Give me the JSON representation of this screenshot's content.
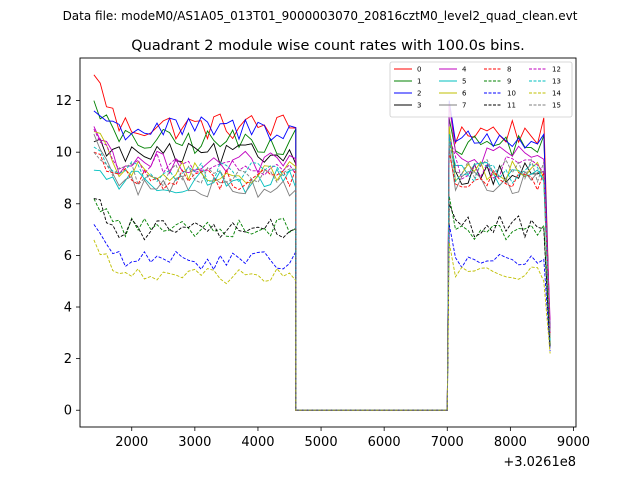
{
  "suptitle": "Data file: modeM0/AS1A05_013T01_9000003070_20816cztM0_level2_quad_clean.evt",
  "chart_data": {
    "type": "line",
    "title": "Quadrant 2 module wise count rates with 100.0s bins.",
    "xlabel": "",
    "ylabel": "",
    "x_offset_label": "+3.0261e8",
    "xlim": [
      1180,
      9040
    ],
    "ylim": [
      -0.65,
      13.65
    ],
    "x_ticks": [
      2000,
      3000,
      4000,
      5000,
      6000,
      7000,
      8000,
      9000
    ],
    "y_ticks": [
      0,
      2,
      4,
      6,
      8,
      10,
      12
    ],
    "grid": false,
    "legend_position": "top-right",
    "segments": [
      {
        "start": 1400,
        "step": 100,
        "count": 33
      },
      {
        "start": 7030,
        "step": 100,
        "count": 17
      }
    ],
    "gap": {
      "x": [
        4600,
        4680,
        7000
      ],
      "y": 0
    },
    "series": [
      {
        "name": "0",
        "color": "#ff0000",
        "dash": false,
        "level1": 11.0,
        "level2": 10.8,
        "start1": 13.0,
        "start2": 11.8,
        "end2": 3.0,
        "noise": 0.55
      },
      {
        "name": "1",
        "color": "#008000",
        "dash": false,
        "level1": 10.4,
        "level2": 10.3,
        "start1": 12.0,
        "start2": 11.3,
        "end2": 2.9,
        "noise": 0.5
      },
      {
        "name": "2",
        "color": "#0000ff",
        "dash": false,
        "level1": 10.9,
        "level2": 10.5,
        "start1": 11.6,
        "start2": 12.0,
        "end2": 3.0,
        "noise": 0.5
      },
      {
        "name": "3",
        "color": "#000000",
        "dash": false,
        "level1": 9.9,
        "level2": 9.2,
        "start1": 10.4,
        "start2": 10.9,
        "end2": 2.7,
        "noise": 0.45
      },
      {
        "name": "4",
        "color": "#bf00bf",
        "dash": false,
        "level1": 9.6,
        "level2": 9.8,
        "start1": 11.0,
        "start2": 11.9,
        "end2": 3.5,
        "noise": 0.45
      },
      {
        "name": "5",
        "color": "#00bfbf",
        "dash": false,
        "level1": 8.9,
        "level2": 9.1,
        "start1": 9.3,
        "start2": 10.5,
        "end2": 2.8,
        "noise": 0.5
      },
      {
        "name": "6",
        "color": "#bfbf00",
        "dash": false,
        "level1": 9.2,
        "level2": 9.3,
        "start1": 10.8,
        "start2": 11.0,
        "end2": 2.6,
        "noise": 0.45
      },
      {
        "name": "7",
        "color": "#7f7f7f",
        "dash": false,
        "level1": 8.7,
        "level2": 8.8,
        "start1": 10.7,
        "start2": 10.2,
        "end2": 2.5,
        "noise": 0.45
      },
      {
        "name": "8",
        "color": "#ff0000",
        "dash": true,
        "level1": 9.0,
        "level2": 8.9,
        "start1": 10.0,
        "start2": 10.0,
        "end2": 2.9,
        "noise": 0.45
      },
      {
        "name": "9",
        "color": "#008000",
        "dash": true,
        "level1": 7.1,
        "level2": 7.0,
        "start1": 8.2,
        "start2": 8.3,
        "end2": 2.5,
        "noise": 0.4
      },
      {
        "name": "10",
        "color": "#0000ff",
        "dash": true,
        "level1": 5.8,
        "level2": 5.8,
        "start1": 7.2,
        "start2": 7.2,
        "end2": 2.3,
        "noise": 0.35
      },
      {
        "name": "11",
        "color": "#000000",
        "dash": true,
        "level1": 7.0,
        "level2": 7.1,
        "start1": 8.2,
        "start2": 8.0,
        "end2": 2.4,
        "noise": 0.45
      },
      {
        "name": "12",
        "color": "#bf00bf",
        "dash": true,
        "level1": 9.5,
        "level2": 9.4,
        "start1": 10.9,
        "start2": 10.6,
        "end2": 3.0,
        "noise": 0.45
      },
      {
        "name": "13",
        "color": "#00bfbf",
        "dash": true,
        "level1": 9.2,
        "level2": 9.2,
        "start1": 10.2,
        "start2": 10.7,
        "end2": 2.7,
        "noise": 0.45
      },
      {
        "name": "14",
        "color": "#bfbf00",
        "dash": true,
        "level1": 5.2,
        "level2": 5.3,
        "start1": 6.6,
        "start2": 6.5,
        "end2": 2.2,
        "noise": 0.3
      },
      {
        "name": "15",
        "color": "#7f7f7f",
        "dash": true,
        "level1": 9.1,
        "level2": 9.3,
        "start1": 10.0,
        "start2": 10.4,
        "end2": 2.8,
        "noise": 0.45
      }
    ]
  }
}
